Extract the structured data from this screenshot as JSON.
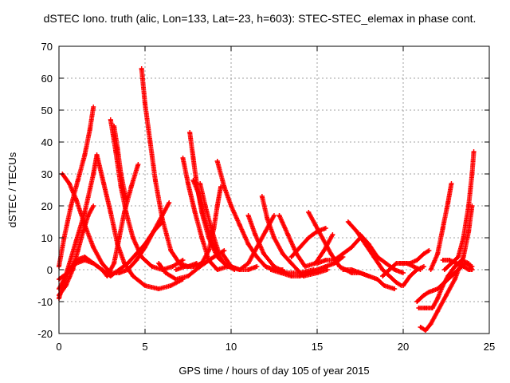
{
  "chart_data": {
    "type": "scatter",
    "title": "dSTEC Iono. truth (alic, Lon=133, Lat=-23, h=603): STEC-STEC_elemax in phase cont.",
    "xlabel": "GPS time / hours of day 105 of year 2015",
    "ylabel": "dSTEC  / TECUs",
    "xlim": [
      0,
      25
    ],
    "ylim": [
      -20,
      70
    ],
    "x_ticks": [
      0,
      5,
      10,
      15,
      20,
      25
    ],
    "y_ticks": [
      -20,
      -10,
      0,
      10,
      20,
      30,
      40,
      50,
      60,
      70
    ],
    "grid": true,
    "legend": "none",
    "marker": "plus",
    "color": "#ff0000",
    "series": [
      {
        "points": [
          [
            0.0,
            1
          ],
          [
            0.3,
            10
          ],
          [
            0.7,
            20
          ],
          [
            1.1,
            28
          ],
          [
            1.5,
            36
          ],
          [
            1.8,
            44
          ],
          [
            2.0,
            51
          ]
        ]
      },
      {
        "points": [
          [
            0.0,
            -8
          ],
          [
            0.4,
            -5
          ],
          [
            0.8,
            0
          ],
          [
            1.1,
            6
          ],
          [
            1.4,
            12
          ],
          [
            1.7,
            17
          ],
          [
            2.0,
            20
          ]
        ]
      },
      {
        "points": [
          [
            0.2,
            30
          ],
          [
            0.6,
            27
          ],
          [
            1.0,
            22
          ],
          [
            1.5,
            14
          ],
          [
            2.0,
            7
          ],
          [
            2.5,
            2
          ],
          [
            3.0,
            -1
          ],
          [
            3.5,
            -1
          ],
          [
            4.0,
            0
          ],
          [
            4.5,
            3
          ],
          [
            5.0,
            7
          ],
          [
            5.5,
            12
          ],
          [
            6.0,
            17
          ],
          [
            6.4,
            21
          ]
        ]
      },
      {
        "points": [
          [
            0.0,
            -3
          ],
          [
            0.5,
            -1
          ],
          [
            1.0,
            2
          ],
          [
            1.5,
            3
          ],
          [
            2.0,
            2
          ],
          [
            2.5,
            0
          ],
          [
            2.8,
            -2
          ],
          [
            3.2,
            2
          ],
          [
            3.5,
            10
          ],
          [
            3.8,
            18
          ],
          [
            4.2,
            26
          ],
          [
            4.6,
            33
          ]
        ]
      },
      {
        "points": [
          [
            0.0,
            -9
          ],
          [
            0.5,
            0
          ],
          [
            1.0,
            9
          ],
          [
            1.5,
            18
          ],
          [
            2.0,
            30
          ],
          [
            2.2,
            36
          ],
          [
            2.6,
            27
          ],
          [
            3.0,
            18
          ],
          [
            3.4,
            8
          ],
          [
            3.8,
            2
          ],
          [
            4.3,
            -2
          ],
          [
            5.0,
            -5
          ],
          [
            5.8,
            -6
          ],
          [
            6.5,
            -5
          ],
          [
            7.2,
            -3
          ]
        ]
      },
      {
        "points": [
          [
            0.0,
            -6
          ],
          [
            0.5,
            -1
          ],
          [
            1.0,
            3
          ],
          [
            1.5,
            4
          ],
          [
            2.0,
            2
          ],
          [
            2.5,
            0
          ],
          [
            3.0,
            -2
          ],
          [
            3.5,
            0
          ],
          [
            4.0,
            2
          ],
          [
            4.5,
            5
          ],
          [
            5.0,
            8
          ],
          [
            5.5,
            12
          ],
          [
            6.0,
            15
          ]
        ]
      },
      {
        "points": [
          [
            3.0,
            47
          ],
          [
            3.3,
            37
          ],
          [
            3.6,
            26
          ],
          [
            3.9,
            18
          ],
          [
            4.3,
            10
          ],
          [
            4.8,
            4
          ],
          [
            5.4,
            1
          ],
          [
            6.0,
            0
          ],
          [
            6.6,
            1
          ],
          [
            7.2,
            3
          ]
        ]
      },
      {
        "points": [
          [
            3.2,
            45
          ],
          [
            3.4,
            38
          ],
          [
            3.6,
            30
          ],
          [
            3.9,
            22
          ]
        ]
      },
      {
        "points": [
          [
            4.8,
            63
          ],
          [
            5.0,
            52
          ],
          [
            5.3,
            40
          ],
          [
            5.6,
            28
          ],
          [
            6.0,
            16
          ],
          [
            6.5,
            6
          ],
          [
            7.0,
            2
          ],
          [
            7.5,
            1
          ],
          [
            8.0,
            2
          ]
        ]
      },
      {
        "points": [
          [
            5.8,
            2
          ],
          [
            6.2,
            -1
          ],
          [
            6.8,
            -3
          ],
          [
            7.5,
            -2
          ],
          [
            8.2,
            1
          ],
          [
            9.0,
            4
          ],
          [
            9.6,
            6
          ]
        ]
      },
      {
        "points": [
          [
            7.2,
            35
          ],
          [
            7.5,
            27
          ],
          [
            7.9,
            18
          ],
          [
            8.3,
            10
          ],
          [
            8.7,
            3
          ],
          [
            9.2,
            0
          ],
          [
            9.8,
            1
          ]
        ]
      },
      {
        "points": [
          [
            7.6,
            43
          ],
          [
            7.8,
            35
          ],
          [
            8.0,
            27
          ],
          [
            8.3,
            18
          ],
          [
            8.7,
            10
          ],
          [
            9.2,
            4
          ],
          [
            9.8,
            1
          ],
          [
            10.5,
            0
          ],
          [
            11.0,
            0
          ],
          [
            11.5,
            1
          ]
        ]
      },
      {
        "points": [
          [
            7.8,
            28
          ],
          [
            8.1,
            24
          ],
          [
            8.5,
            15
          ],
          [
            9.0,
            7
          ],
          [
            9.6,
            2
          ],
          [
            10.2,
            0
          ]
        ]
      },
      {
        "points": [
          [
            8.2,
            27
          ],
          [
            8.5,
            20
          ],
          [
            8.9,
            12
          ],
          [
            9.3,
            5
          ]
        ]
      },
      {
        "points": [
          [
            6.8,
            0
          ],
          [
            7.3,
            1
          ],
          [
            7.8,
            1
          ],
          [
            8.3,
            2
          ],
          [
            8.7,
            6
          ],
          [
            9.0,
            13
          ],
          [
            9.2,
            20
          ],
          [
            9.4,
            26
          ]
        ]
      },
      {
        "points": [
          [
            9.2,
            34
          ],
          [
            9.6,
            26
          ],
          [
            10.0,
            20
          ],
          [
            10.5,
            14
          ],
          [
            11.0,
            8
          ],
          [
            11.5,
            4
          ],
          [
            12.0,
            1
          ],
          [
            12.5,
            0
          ],
          [
            13.0,
            0
          ]
        ]
      },
      {
        "points": [
          [
            9.5,
            5
          ],
          [
            10.0,
            1
          ],
          [
            10.5,
            0
          ],
          [
            11.0,
            2
          ],
          [
            11.5,
            7
          ],
          [
            12.0,
            12
          ],
          [
            12.5,
            17
          ]
        ]
      },
      {
        "points": [
          [
            11.0,
            17
          ],
          [
            11.4,
            11
          ],
          [
            11.9,
            5
          ],
          [
            12.5,
            1
          ],
          [
            13.2,
            -1
          ],
          [
            14.0,
            -1
          ],
          [
            14.8,
            0
          ]
        ]
      },
      {
        "points": [
          [
            11.8,
            23
          ],
          [
            12.1,
            16
          ],
          [
            12.5,
            10
          ],
          [
            13.0,
            5
          ],
          [
            13.5,
            2
          ],
          [
            14.2,
            -2
          ],
          [
            15.0,
            -1
          ],
          [
            15.6,
            0
          ]
        ]
      },
      {
        "points": [
          [
            12.3,
            0
          ],
          [
            12.9,
            -1
          ],
          [
            13.5,
            -2
          ],
          [
            14.0,
            -2
          ],
          [
            14.5,
            -1
          ],
          [
            15.0,
            0
          ],
          [
            15.5,
            1
          ],
          [
            16.0,
            2
          ],
          [
            16.5,
            4
          ]
        ]
      },
      {
        "points": [
          [
            12.8,
            17
          ],
          [
            13.3,
            11
          ],
          [
            13.8,
            5
          ],
          [
            14.3,
            1
          ],
          [
            14.9,
            2
          ],
          [
            15.4,
            6
          ],
          [
            15.9,
            11
          ]
        ]
      },
      {
        "points": [
          [
            14.5,
            18
          ],
          [
            14.9,
            14
          ],
          [
            15.3,
            10
          ],
          [
            15.8,
            5
          ],
          [
            16.3,
            1
          ],
          [
            17.0,
            -1
          ],
          [
            17.5,
            -1
          ],
          [
            18.0,
            -2
          ]
        ]
      },
      {
        "points": [
          [
            13.5,
            4
          ],
          [
            14.0,
            7
          ],
          [
            14.5,
            10
          ],
          [
            15.0,
            12
          ],
          [
            15.5,
            13
          ]
        ]
      },
      {
        "points": [
          [
            15.0,
            2
          ],
          [
            15.5,
            3
          ],
          [
            16.0,
            3
          ],
          [
            16.5,
            5
          ],
          [
            17.0,
            7
          ],
          [
            17.5,
            10
          ]
        ]
      },
      {
        "points": [
          [
            16.8,
            15
          ],
          [
            17.3,
            12
          ],
          [
            17.8,
            8
          ],
          [
            18.3,
            4
          ],
          [
            18.8,
            0
          ],
          [
            19.2,
            -2
          ],
          [
            19.6,
            -4
          ],
          [
            19.9,
            -5
          ]
        ]
      },
      {
        "points": [
          [
            16.5,
            0
          ],
          [
            17.0,
            0
          ],
          [
            17.5,
            -1
          ],
          [
            18.0,
            -2
          ],
          [
            18.5,
            -3
          ],
          [
            18.9,
            -5
          ],
          [
            19.5,
            -6
          ]
        ]
      },
      {
        "points": [
          [
            17.5,
            11
          ],
          [
            18.0,
            8
          ],
          [
            18.5,
            4
          ],
          [
            19.0,
            2
          ],
          [
            19.5,
            0
          ],
          [
            20.0,
            -1
          ]
        ]
      },
      {
        "points": [
          [
            18.8,
            -2
          ],
          [
            19.2,
            0
          ],
          [
            19.6,
            2
          ],
          [
            20.0,
            2
          ],
          [
            20.4,
            2
          ],
          [
            20.8,
            3
          ],
          [
            21.2,
            5
          ],
          [
            21.5,
            6
          ]
        ]
      },
      {
        "points": [
          [
            19.8,
            2
          ],
          [
            20.2,
            2
          ],
          [
            20.6,
            1
          ],
          [
            21.0,
            0
          ]
        ]
      },
      {
        "points": [
          [
            20.0,
            -5
          ],
          [
            20.4,
            -2
          ],
          [
            20.8,
            0
          ],
          [
            21.2,
            1
          ]
        ]
      },
      {
        "points": [
          [
            20.8,
            -10
          ],
          [
            21.2,
            -8
          ],
          [
            21.5,
            -7
          ],
          [
            22.0,
            -6
          ],
          [
            22.4,
            -4
          ],
          [
            22.8,
            -2
          ],
          [
            23.2,
            0
          ],
          [
            23.6,
            2
          ],
          [
            24.0,
            1
          ]
        ]
      },
      {
        "points": [
          [
            20.9,
            -12
          ],
          [
            21.3,
            -12
          ],
          [
            21.7,
            -12
          ],
          [
            22.0,
            -9
          ],
          [
            22.3,
            -5
          ],
          [
            22.6,
            -2
          ],
          [
            23.0,
            1
          ],
          [
            23.4,
            3
          ],
          [
            23.8,
            2
          ],
          [
            24.0,
            0
          ]
        ]
      },
      {
        "points": [
          [
            21.0,
            -18
          ],
          [
            21.3,
            -19
          ],
          [
            21.6,
            -17
          ],
          [
            22.0,
            -13
          ],
          [
            22.5,
            -8
          ],
          [
            23.0,
            -3
          ],
          [
            23.5,
            4
          ],
          [
            23.8,
            12
          ],
          [
            24.0,
            20
          ]
        ]
      },
      {
        "points": [
          [
            21.6,
            0
          ],
          [
            22.0,
            5
          ],
          [
            22.3,
            13
          ],
          [
            22.6,
            21
          ],
          [
            22.8,
            27
          ]
        ]
      },
      {
        "points": [
          [
            22.4,
            0
          ],
          [
            22.8,
            2
          ],
          [
            23.2,
            4
          ],
          [
            23.5,
            10
          ],
          [
            23.8,
            20
          ],
          [
            24.0,
            30
          ],
          [
            24.1,
            37
          ]
        ]
      },
      {
        "points": [
          [
            22.3,
            3
          ],
          [
            22.7,
            3
          ],
          [
            23.1,
            2
          ],
          [
            23.5,
            1
          ],
          [
            23.8,
            0
          ],
          [
            24.0,
            0
          ]
        ]
      }
    ]
  }
}
